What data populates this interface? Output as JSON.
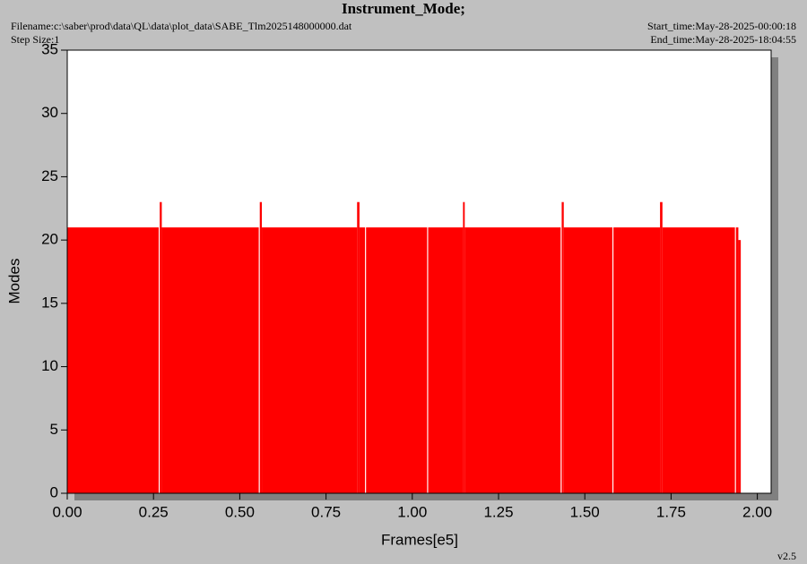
{
  "chart_data": {
    "type": "step-area",
    "title": "Instrument_Mode;",
    "filename": "Filename:c:\\saber\\prod\\data\\QL\\data\\plot_data\\SABE_Tlm2025148000000.dat",
    "step_size": "Step Size:1",
    "start_time": "Start_time:May-28-2025-00:00:18",
    "end_time": "End_time:May-28-2025-18:04:55",
    "version": "v2.5",
    "xlabel": "Frames[e5]",
    "ylabel": "Modes",
    "color": "#ff0000",
    "x": [
      0,
      0.265,
      0.268,
      0.274,
      0.555,
      0.558,
      0.564,
      0.84,
      0.847,
      0.863,
      0.866,
      1.043,
      1.046,
      1.147,
      1.152,
      1.43,
      1.433,
      1.439,
      1.58,
      1.583,
      1.718,
      1.725,
      1.935,
      1.938,
      1.945,
      1.952
    ],
    "values": [
      21,
      0,
      23,
      21,
      0,
      23,
      21,
      23,
      21,
      0,
      21,
      0,
      21,
      23,
      21,
      0,
      23,
      21,
      0,
      21,
      23,
      21,
      0,
      21,
      20,
      0
    ],
    "xlim": [
      0,
      2.04
    ],
    "ylim": [
      0,
      35
    ],
    "xticks": [
      {
        "value": 0,
        "label": "0.00"
      },
      {
        "value": 0.25,
        "label": "0.25"
      },
      {
        "value": 0.5,
        "label": "0.50"
      },
      {
        "value": 0.75,
        "label": "0.75"
      },
      {
        "value": 1,
        "label": "1.00"
      },
      {
        "value": 1.25,
        "label": "1.25"
      },
      {
        "value": 1.5,
        "label": "1.50"
      },
      {
        "value": 1.75,
        "label": "1.75"
      },
      {
        "value": 2,
        "label": "2.00"
      }
    ],
    "yticks": [
      0,
      5,
      10,
      15,
      20,
      25,
      30,
      35
    ]
  }
}
